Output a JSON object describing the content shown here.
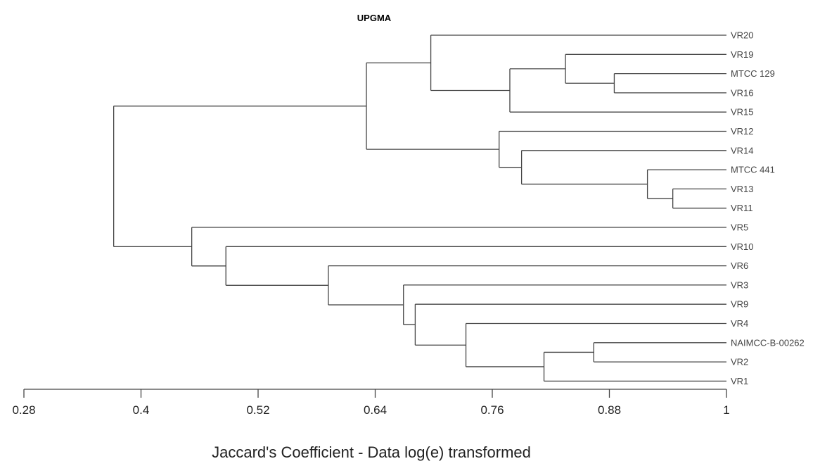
{
  "chart_data": {
    "type": "dendrogram",
    "title": "UPGMA",
    "xlabel": "Jaccard's Coefficient - Data log(e) transformed",
    "xlim": [
      0.28,
      1
    ],
    "ticks": [
      "0.28",
      "0.4",
      "0.52",
      "0.64",
      "0.76",
      "0.88",
      "1"
    ],
    "leaves": [
      "VR20",
      "VR19",
      "MTCC 129",
      "VR16",
      "VR15",
      "VR12",
      "VR14",
      "MTCC 441",
      "VR13",
      "VR11",
      "VR5",
      "VR10",
      "VR6",
      "VR3",
      "VR9",
      "VR4",
      "NAIMCC-B-00262",
      "VR2",
      "VR1"
    ],
    "merges": [
      {
        "id": "a",
        "children": [
          "MTCC 129",
          "VR16"
        ],
        "similarity": 0.885
      },
      {
        "id": "b",
        "children": [
          "VR19",
          "a"
        ],
        "similarity": 0.835
      },
      {
        "id": "c",
        "children": [
          "b",
          "VR15"
        ],
        "similarity": 0.778
      },
      {
        "id": "d",
        "children": [
          "VR20",
          "c"
        ],
        "similarity": 0.697
      },
      {
        "id": "e",
        "children": [
          "VR13",
          "VR11"
        ],
        "similarity": 0.945
      },
      {
        "id": "f",
        "children": [
          "MTCC 441",
          "e"
        ],
        "similarity": 0.919
      },
      {
        "id": "g",
        "children": [
          "VR14",
          "f"
        ],
        "similarity": 0.79
      },
      {
        "id": "h",
        "children": [
          "VR12",
          "g"
        ],
        "similarity": 0.767
      },
      {
        "id": "i",
        "children": [
          "d",
          "h"
        ],
        "similarity": 0.631
      },
      {
        "id": "j",
        "children": [
          "NAIMCC-B-00262",
          "VR2"
        ],
        "similarity": 0.864
      },
      {
        "id": "k",
        "children": [
          "j",
          "VR1"
        ],
        "similarity": 0.813
      },
      {
        "id": "l",
        "children": [
          "VR4",
          "k"
        ],
        "similarity": 0.733
      },
      {
        "id": "m",
        "children": [
          "VR9",
          "l"
        ],
        "similarity": 0.681
      },
      {
        "id": "n",
        "children": [
          "VR3",
          "m"
        ],
        "similarity": 0.669
      },
      {
        "id": "o",
        "children": [
          "VR6",
          "n"
        ],
        "similarity": 0.592
      },
      {
        "id": "p",
        "children": [
          "VR10",
          "o"
        ],
        "similarity": 0.487
      },
      {
        "id": "q",
        "children": [
          "VR5",
          "p"
        ],
        "similarity": 0.452
      },
      {
        "id": "r",
        "children": [
          "i",
          "q"
        ],
        "similarity": 0.372
      }
    ]
  }
}
